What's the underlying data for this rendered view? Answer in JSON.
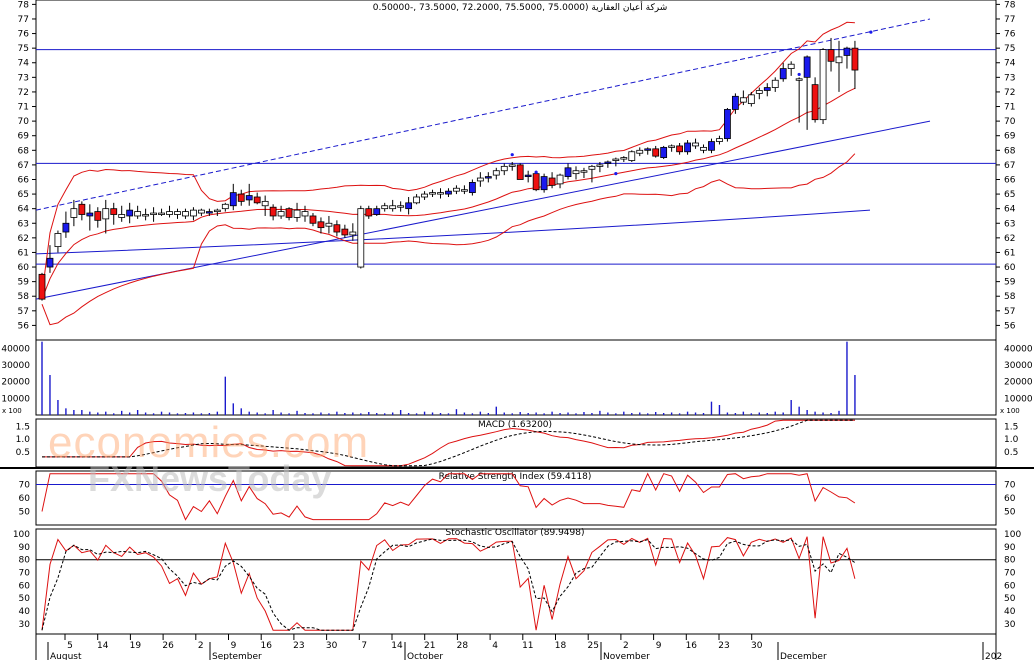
{
  "title": "شركة أعيان العقارية (75.0000 ,75.5000 ,72.2000 ,73.5000 ,-0.50000",
  "watermark": {
    "primary": "economies.com",
    "secondary": "FXNewsToday"
  },
  "colors": {
    "up": "#1a1aee",
    "down": "#ee1111",
    "band": "#dd1111",
    "line": "#1a1acc",
    "grid": "#000000"
  },
  "chart_data": {
    "type": "candlestick",
    "price_axis": {
      "ticks": [
        56,
        57,
        58,
        59,
        60,
        61,
        62,
        63,
        64,
        65,
        66,
        67,
        68,
        69,
        70,
        71,
        72,
        73,
        74,
        75,
        76,
        77,
        78
      ],
      "ylim": [
        55,
        78.3
      ]
    },
    "x_ticks": [
      "5",
      "14",
      "19",
      "26",
      "2",
      "9",
      "16",
      "23",
      "30",
      "7",
      "14",
      "21",
      "28",
      "4",
      "11",
      "18",
      "25",
      "2",
      "9",
      "16",
      "23",
      "30"
    ],
    "months": [
      "August",
      "September",
      "October",
      "November",
      "December",
      "202"
    ],
    "horizontal_levels": [
      74.9,
      67.1,
      60.2
    ],
    "trend_line_values": [
      57.8,
      70.0
    ],
    "channel_line_values": [
      63.9,
      77.0
    ],
    "ohlc": [
      [
        59.5,
        59.6,
        57.7,
        57.8
      ],
      [
        60.0,
        61.5,
        59.6,
        60.6
      ],
      [
        61.4,
        62.5,
        61.0,
        62.3
      ],
      [
        62.4,
        63.8,
        62.0,
        63.0
      ],
      [
        63.4,
        64.6,
        62.8,
        64.0
      ],
      [
        64.3,
        64.5,
        63.2,
        63.6
      ],
      [
        63.5,
        64.3,
        62.5,
        63.7
      ],
      [
        63.8,
        64.1,
        62.7,
        63.2
      ],
      [
        63.3,
        64.6,
        62.3,
        64.0
      ],
      [
        64.0,
        64.4,
        62.9,
        63.6
      ],
      [
        63.6,
        64.2,
        63.1,
        63.4
      ],
      [
        63.5,
        64.4,
        63.0,
        63.9
      ],
      [
        63.8,
        64.2,
        63.3,
        63.5
      ],
      [
        63.5,
        64.0,
        63.2,
        63.6
      ],
      [
        63.6,
        64.1,
        63.1,
        63.7
      ],
      [
        63.7,
        64.0,
        63.5,
        63.7
      ],
      [
        63.8,
        64.2,
        63.4,
        63.6
      ],
      [
        63.6,
        64.0,
        63.3,
        63.8
      ],
      [
        63.8,
        64.0,
        63.3,
        63.5
      ],
      [
        63.5,
        64.1,
        63.2,
        63.9
      ],
      [
        63.9,
        64.0,
        63.5,
        63.7
      ],
      [
        63.7,
        64.0,
        63.5,
        63.8
      ],
      [
        63.9,
        64.0,
        63.5,
        63.9
      ],
      [
        64.0,
        64.4,
        63.8,
        64.3
      ],
      [
        64.2,
        65.7,
        63.9,
        65.1
      ],
      [
        65.0,
        65.3,
        64.2,
        64.5
      ],
      [
        64.6,
        65.7,
        64.2,
        64.9
      ],
      [
        64.8,
        65.1,
        64.3,
        64.4
      ],
      [
        64.5,
        64.9,
        63.5,
        64.2
      ],
      [
        64.1,
        64.3,
        63.2,
        63.5
      ],
      [
        63.8,
        64.2,
        63.3,
        63.5
      ],
      [
        64.0,
        64.1,
        63.2,
        63.4
      ],
      [
        63.4,
        64.4,
        63.1,
        63.9
      ],
      [
        63.8,
        64.2,
        63.1,
        63.5
      ],
      [
        63.5,
        63.7,
        62.8,
        63.0
      ],
      [
        63.1,
        63.4,
        62.3,
        62.7
      ],
      [
        63.0,
        63.5,
        62.3,
        62.8
      ],
      [
        62.9,
        63.2,
        62.1,
        62.4
      ],
      [
        62.6,
        62.9,
        62.0,
        62.2
      ],
      [
        62.2,
        63.0,
        61.8,
        62.4
      ],
      [
        60.0,
        64.2,
        59.9,
        64.0
      ],
      [
        64.0,
        64.2,
        63.3,
        63.5
      ],
      [
        63.6,
        64.2,
        63.5,
        64.0
      ],
      [
        64.0,
        64.4,
        63.8,
        64.2
      ],
      [
        64.2,
        64.6,
        63.8,
        64.0
      ],
      [
        64.1,
        64.5,
        63.8,
        64.2
      ],
      [
        64.0,
        64.8,
        63.6,
        64.4
      ],
      [
        64.4,
        65.0,
        64.3,
        64.8
      ],
      [
        64.8,
        65.2,
        64.6,
        65.0
      ],
      [
        65.0,
        65.3,
        64.8,
        65.1
      ],
      [
        65.1,
        65.4,
        64.7,
        65.0
      ],
      [
        65.0,
        65.4,
        64.8,
        65.2
      ],
      [
        65.2,
        65.6,
        65.0,
        65.4
      ],
      [
        65.3,
        65.6,
        65.0,
        65.2
      ],
      [
        65.1,
        66.0,
        64.9,
        65.8
      ],
      [
        65.9,
        66.5,
        65.5,
        66.1
      ],
      [
        66.1,
        66.5,
        65.8,
        66.2
      ],
      [
        66.3,
        66.8,
        66.0,
        66.6
      ],
      [
        66.6,
        67.1,
        66.3,
        66.9
      ],
      [
        66.9,
        67.2,
        66.6,
        67.0
      ],
      [
        67.0,
        67.1,
        66.0,
        66.0
      ],
      [
        66.2,
        66.6,
        65.8,
        66.3
      ],
      [
        66.4,
        66.6,
        65.2,
        65.3
      ],
      [
        65.3,
        66.4,
        65.1,
        66.2
      ],
      [
        66.1,
        66.5,
        65.4,
        65.6
      ],
      [
        65.7,
        66.4,
        65.4,
        66.3
      ],
      [
        66.2,
        67.1,
        66.0,
        66.8
      ],
      [
        66.6,
        66.9,
        66.0,
        66.4
      ],
      [
        66.5,
        66.8,
        66.1,
        66.6
      ],
      [
        66.7,
        67.0,
        65.8,
        66.9
      ],
      [
        66.9,
        67.2,
        66.5,
        67.0
      ],
      [
        67.1,
        67.3,
        66.8,
        67.2
      ],
      [
        67.3,
        67.5,
        66.9,
        67.4
      ],
      [
        67.5,
        67.6,
        67.2,
        67.4
      ],
      [
        67.3,
        68.0,
        67.2,
        67.9
      ],
      [
        67.8,
        68.2,
        67.6,
        68.0
      ],
      [
        68.0,
        68.2,
        67.7,
        68.1
      ],
      [
        68.1,
        68.3,
        67.5,
        67.6
      ],
      [
        67.5,
        68.3,
        67.4,
        68.2
      ],
      [
        68.3,
        68.4,
        67.9,
        68.3
      ],
      [
        68.3,
        68.5,
        67.7,
        67.9
      ],
      [
        67.9,
        68.7,
        67.7,
        68.5
      ],
      [
        68.5,
        68.8,
        68.1,
        68.3
      ],
      [
        68.2,
        68.4,
        67.8,
        68.0
      ],
      [
        68.0,
        68.8,
        67.8,
        68.6
      ],
      [
        68.6,
        69.0,
        68.4,
        68.8
      ],
      [
        68.8,
        70.9,
        68.6,
        70.8
      ],
      [
        70.8,
        71.9,
        70.5,
        71.7
      ],
      [
        71.6,
        72.1,
        71.1,
        71.3
      ],
      [
        71.2,
        72.0,
        71.0,
        71.8
      ],
      [
        71.9,
        72.3,
        71.5,
        72.1
      ],
      [
        72.1,
        72.6,
        71.7,
        72.3
      ],
      [
        72.3,
        73.0,
        72.0,
        72.8
      ],
      [
        72.9,
        74.0,
        72.7,
        73.6
      ],
      [
        73.6,
        74.1,
        73.1,
        73.9
      ],
      [
        72.9,
        73.0,
        69.9,
        72.9
      ],
      [
        73.0,
        74.5,
        69.4,
        74.4
      ],
      [
        72.5,
        73.0,
        69.9,
        70.1
      ],
      [
        70.1,
        75.0,
        69.8,
        74.9
      ],
      [
        74.9,
        75.7,
        73.4,
        74.1
      ],
      [
        74.0,
        75.5,
        72.0,
        74.4
      ],
      [
        74.5,
        75.1,
        73.6,
        75.0
      ],
      [
        75.0,
        75.5,
        72.2,
        73.5
      ]
    ],
    "bollinger": {
      "upper": [],
      "middle": [],
      "lower": []
    },
    "volume": {
      "ylabel": "x 100",
      "ticks": [
        10000,
        20000,
        30000,
        40000
      ]
    },
    "macd": {
      "title": "MACD (1.63200)",
      "ticks": [
        0.5,
        1.0,
        1.5
      ]
    },
    "rsi": {
      "title": "Relative Strength Index (59.4118)",
      "ticks": [
        50,
        60,
        70
      ],
      "value": 59.4118
    },
    "stochastic": {
      "title": "Stochastic Oscillator (89.9498)",
      "ticks": [
        30,
        40,
        50,
        60,
        70,
        80,
        90,
        100
      ],
      "value": 89.9498
    }
  }
}
